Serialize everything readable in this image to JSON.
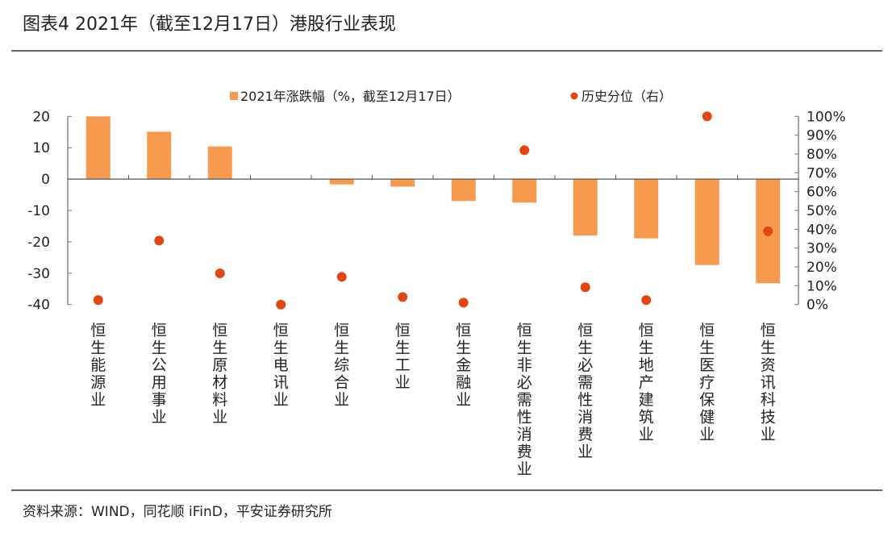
{
  "title": "图表4  2021年（截至12月17日）港股行业表现",
  "source": "资料来源：WIND，同花顺 iFinD，平安证券研究所",
  "chart_data": {
    "type": "bar+scatter",
    "categories": [
      "恒生能源业",
      "恒生公用事业",
      "恒生原材料业",
      "恒生电讯业",
      "恒生综合业",
      "恒生工业",
      "恒生金融业",
      "恒生非必需性消费业",
      "恒生必需性消费业",
      "恒生地产建筑业",
      "恒生医疗保健业",
      "恒生资讯科技业"
    ],
    "series": [
      {
        "name": "2021年涨跌幅（%，截至12月17日）",
        "type": "bar",
        "axis": "left",
        "color": "#F79A4E",
        "values": [
          20.0,
          15.1,
          10.4,
          0.0,
          -1.7,
          -2.4,
          -7.0,
          -7.5,
          -18.0,
          -18.9,
          -27.4,
          -33.2
        ]
      },
      {
        "name": "历史分位（右）",
        "type": "scatter",
        "axis": "right",
        "color": "#E2450F",
        "values": [
          2.4,
          34.0,
          16.6,
          0.0,
          14.7,
          4.0,
          1.0,
          82.0,
          9.2,
          2.4,
          100.0,
          38.9
        ]
      }
    ],
    "left_axis": {
      "ylim": [
        -40,
        20
      ],
      "ticks": [
        "20",
        "10",
        "0",
        "-10",
        "-20",
        "-30",
        "-40"
      ],
      "tick_values": [
        20,
        10,
        0,
        -10,
        -20,
        -30,
        -40
      ]
    },
    "right_axis": {
      "ylim": [
        0,
        100
      ],
      "ticks": [
        "100%",
        "90%",
        "80%",
        "70%",
        "60%",
        "50%",
        "40%",
        "30%",
        "20%",
        "10%",
        "0%"
      ],
      "tick_values": [
        100,
        90,
        80,
        70,
        60,
        50,
        40,
        30,
        20,
        10,
        0
      ]
    },
    "legend": "top",
    "grid": false
  }
}
